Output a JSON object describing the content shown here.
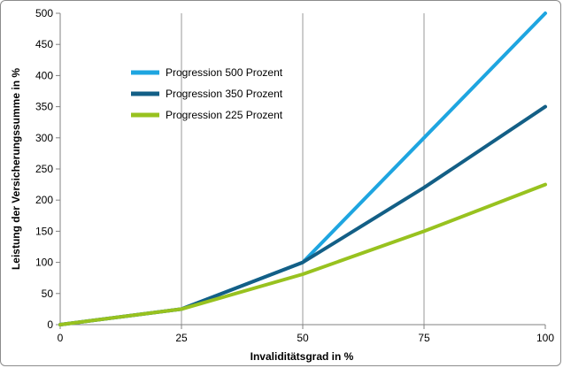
{
  "chart_data": {
    "type": "line",
    "title": "",
    "xlabel": "Invaliditätsgrad in %",
    "ylabel": "Leistung der Versicherungssumme in %",
    "x": [
      0,
      25,
      50,
      75,
      100
    ],
    "xlim": [
      0,
      100
    ],
    "ylim": [
      0,
      500
    ],
    "xticks": [
      "0",
      "25",
      "50",
      "75",
      "100"
    ],
    "yticks": [
      "0",
      "50",
      "100",
      "150",
      "200",
      "250",
      "300",
      "350",
      "400",
      "450",
      "500"
    ],
    "grid": "vertical lines at x=25, 50, 75",
    "legend_position": "top-left",
    "series": [
      {
        "name": "Progression 500 Prozent",
        "color": "#1ea5e0",
        "values": [
          0,
          25,
          100,
          300,
          500
        ]
      },
      {
        "name": "Progression 350 Prozent",
        "color": "#135f86",
        "values": [
          0,
          25,
          100,
          220,
          350
        ]
      },
      {
        "name": "Progression 225 Prozent",
        "color": "#98c21f",
        "values": [
          0,
          25,
          81,
          150,
          225
        ]
      }
    ]
  }
}
